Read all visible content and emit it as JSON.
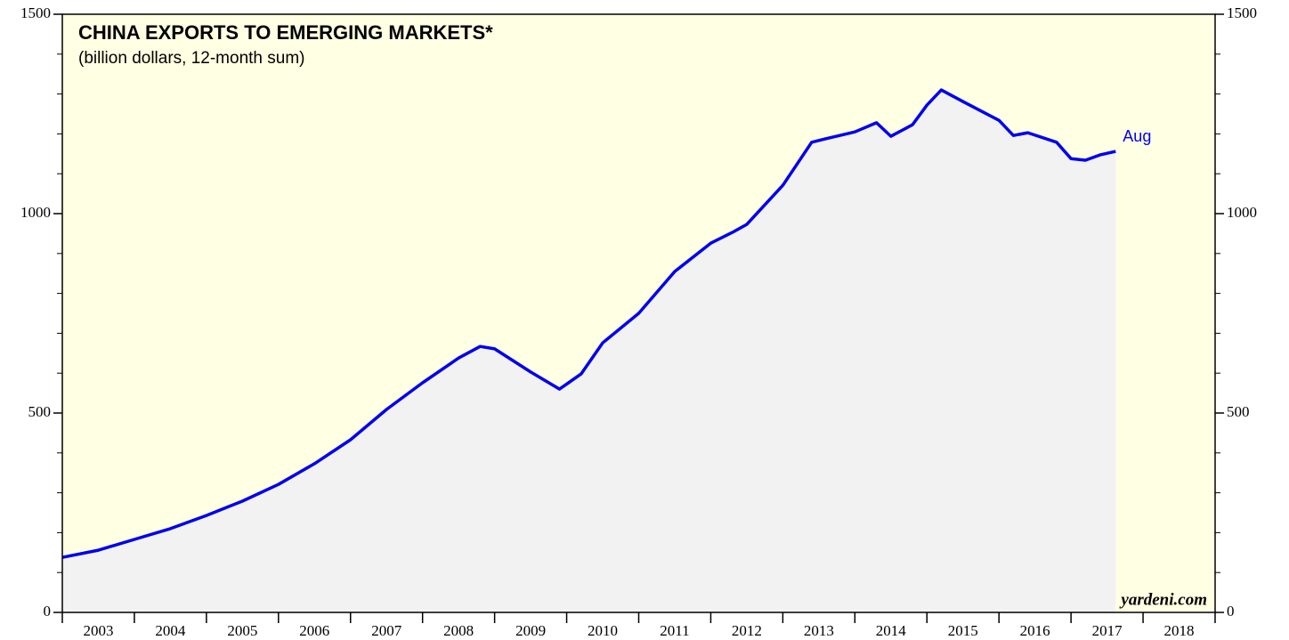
{
  "chart_data": {
    "type": "area-line",
    "title": "CHINA EXPORTS TO EMERGING MARKETS*",
    "subtitle": "(billion dollars, 12-month sum)",
    "end_label": "Aug",
    "source": "yardeni.com",
    "x": [
      2003.0,
      2003.5,
      2004.0,
      2004.5,
      2005.0,
      2005.5,
      2006.0,
      2006.5,
      2007.0,
      2007.5,
      2008.0,
      2008.5,
      2008.8,
      2009.0,
      2009.5,
      2009.9,
      2010.2,
      2010.5,
      2011.0,
      2011.5,
      2012.0,
      2012.3,
      2012.5,
      2013.0,
      2013.4,
      2013.6,
      2014.0,
      2014.3,
      2014.5,
      2014.8,
      2015.0,
      2015.2,
      2015.5,
      2016.0,
      2016.2,
      2016.4,
      2016.8,
      2017.0,
      2017.2,
      2017.4,
      2017.62
    ],
    "series": [
      {
        "name": "China exports to emerging markets",
        "color": "#0000ee",
        "values": [
          138,
          156,
          183,
          210,
          243,
          279,
          321,
          373,
          433,
          509,
          576,
          638,
          667,
          661,
          603,
          560,
          598,
          676,
          750,
          855,
          926,
          953,
          973,
          1071,
          1179,
          1188,
          1205,
          1228,
          1194,
          1223,
          1272,
          1310,
          1281,
          1234,
          1196,
          1203,
          1179,
          1138,
          1134,
          1147,
          1156
        ]
      }
    ],
    "xlim": [
      2003,
      2019
    ],
    "xticks": [
      2003,
      2004,
      2005,
      2006,
      2007,
      2008,
      2009,
      2010,
      2011,
      2012,
      2013,
      2014,
      2015,
      2016,
      2017,
      2018,
      2019
    ],
    "year_labels": [
      "2003",
      "2004",
      "2005",
      "2006",
      "2007",
      "2008",
      "2009",
      "2010",
      "2011",
      "2012",
      "2013",
      "2014",
      "2015",
      "2016",
      "2017",
      "2018"
    ],
    "ylim": [
      0,
      1500
    ],
    "yticks": [
      0,
      500,
      1000,
      1500
    ],
    "yminorticks": [
      100,
      200,
      300,
      400,
      600,
      700,
      800,
      900,
      1100,
      1200,
      1300,
      1400
    ],
    "background": "#ffffe3",
    "area_color": "#f2f2f2"
  }
}
